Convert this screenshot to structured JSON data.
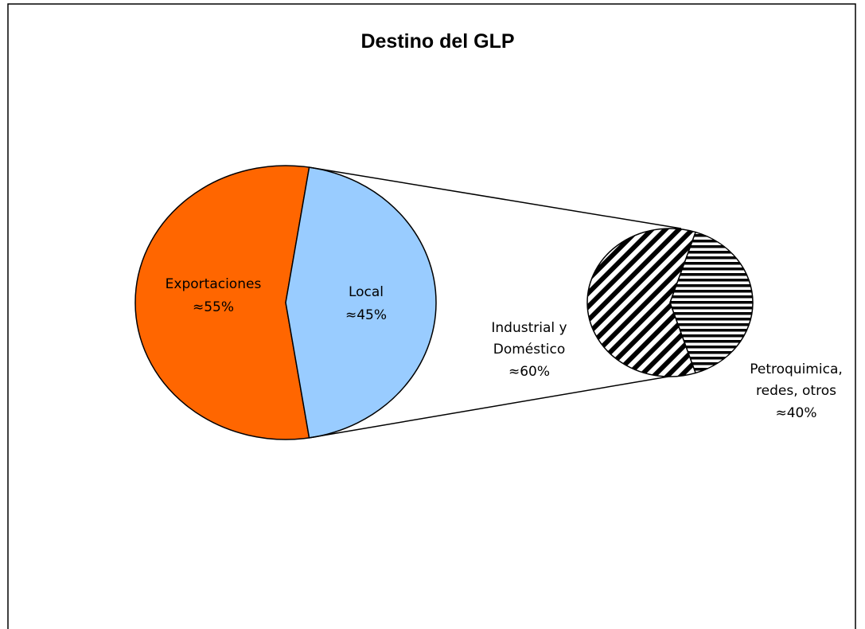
{
  "chart_data": [
    {
      "type": "pie",
      "title": "Destino del GLP",
      "categories": [
        "Exportaciones",
        "Local"
      ],
      "values": [
        55,
        45
      ],
      "value_labels": [
        "≈55%",
        "≈45%"
      ],
      "colors": [
        "#ff6600",
        "#99ccff"
      ]
    },
    {
      "type": "pie",
      "categories": [
        "Industrial y Doméstico",
        "Petroquimica, redes, otros"
      ],
      "values": [
        60,
        40
      ],
      "value_labels": [
        "≈60%",
        "≈40%"
      ],
      "colors": [
        "#99ccff",
        "#99ccff"
      ],
      "patterns": [
        "diagonal",
        "horizontal"
      ]
    }
  ]
}
